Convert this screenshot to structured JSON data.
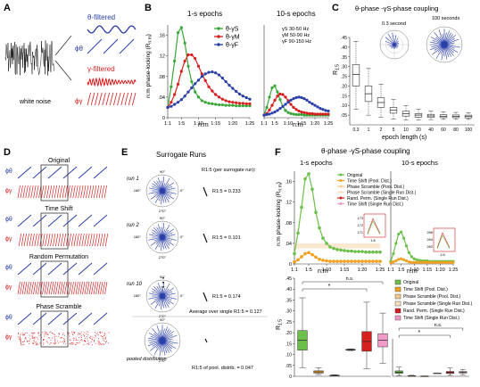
{
  "panels": {
    "A": {
      "label": "A",
      "noise_label": "white noise",
      "theta_filtered": "θ-filtered",
      "gamma_filtered": "γ-filtered",
      "phi_theta": "ϕθ",
      "phi_gamma": "ϕγ"
    },
    "B": {
      "label": "B",
      "title_left": "1-s epochs",
      "title_right": "10-s epochs",
      "ylabel": "n:m phase-locking (R",
      "ylabel_sub": "n:m",
      "ylabel_end": ")",
      "xlabel": "n:m",
      "legend": [
        "θ-γS",
        "θ-γM",
        "θ-γF"
      ],
      "bands": [
        "γS  30-50 Hz",
        "γM  50-90 Hz",
        "γF  90-150 Hz"
      ],
      "yticks": [
        "0",
        ".04",
        ".08",
        ".12",
        ".16"
      ],
      "xticks": [
        "1:1",
        "1:5",
        "1:10",
        "1:15",
        "1:20",
        "1:25"
      ],
      "colors": {
        "slow": "#3aa63a",
        "mid": "#d62020",
        "fast": "#2b3fa8"
      }
    },
    "C": {
      "label": "C",
      "title": "θ-phase -γS-phase coupling",
      "polar_left": "0.3 second",
      "polar_right": "100 seconds",
      "ylabel": "R",
      "ylabel_sub": "1:5",
      "xlabel": "epoch length (s)",
      "yticks": [
        ".05",
        ".10",
        ".15",
        ".20",
        ".25",
        ".30",
        ".35",
        ".40",
        ".45"
      ],
      "xticks": [
        "0.3",
        "1",
        "2",
        "5",
        "10",
        "20",
        "40",
        "60",
        "80",
        "100"
      ]
    },
    "D": {
      "label": "D",
      "sections": [
        "Original",
        "Time Shift",
        "Random Permutation",
        "Phase Scramble"
      ],
      "phi_theta": "ϕθ",
      "phi_gamma": "ϕγ"
    },
    "E": {
      "label": "E",
      "title": "Surrogate Runs",
      "rlabel": "R1:5 (per surrogate run):",
      "runs": [
        {
          "name": "run 1",
          "value": "R1:5 = 0.233"
        },
        {
          "name": "run 2",
          "value": "R1:5 = 0.101"
        },
        {
          "name": "run 10",
          "value": "R1:5 = 0.174"
        }
      ],
      "ellipsis": "⋮",
      "average": "Average over single R1:5 = 0.127",
      "pooled_label": "pooled distribution",
      "pooled_value": "R1:5 of pool. distrib. = 0.047",
      "angles": [
        "90°",
        "270°",
        "0°",
        "180°"
      ]
    },
    "F": {
      "label": "F",
      "title": "θ-phase -γS-phase coupling",
      "title_left": "1-s epochs",
      "title_right": "10-s epochs",
      "ylabel": "n:m phase-locking (R",
      "ylabel_sub": "n:m",
      "ylabel_end": ")",
      "xlabel": "n:m",
      "yticks": [
        "0",
        ".04",
        ".08",
        ".12",
        ".16"
      ],
      "xticks": [
        "1:1",
        "1:5",
        "1:10",
        "1:15",
        "1:20",
        "1:25"
      ],
      "legend": [
        {
          "label": "Original",
          "color": "#6cbf4a"
        },
        {
          "label": "Time Shift (Pool. Dist.)",
          "color": "#f0a020"
        },
        {
          "label": "Phase Scramble (Pool. Dist.)",
          "color": "#f2c890"
        },
        {
          "label": "Phase Scramble (Single Run Dist.)",
          "color": "#f7e0c0"
        },
        {
          "label": "Rand. Perm. (Single Run Dist.)",
          "color": "#d62020"
        },
        {
          "label": "Time Shift (Single Run Dist.)",
          "color": "#f29ac8"
        }
      ],
      "box_legend": [
        {
          "label": "Original",
          "color": "#6cbf4a"
        },
        {
          "label": "Time Shift (Pool. Dist.)",
          "color": "#f0a020"
        },
        {
          "label": "Phase Scramble (Pool. Dist.)",
          "color": "#f2c890"
        },
        {
          "label": "Phase Scramble (Single Run Dist.)",
          "color": "#f7e0c0"
        },
        {
          "label": "Rand. Perm. (Single Run Dist.)",
          "color": "#d62020"
        },
        {
          "label": "Time Shift (Single Run Dist.)",
          "color": "#f29ac8"
        }
      ],
      "box_yticks": [
        "0",
        ".05",
        ".10",
        ".15",
        ".20",
        ".25",
        ".30",
        ".35",
        ".40",
        ".45"
      ],
      "box_ylabel": "R",
      "box_ylabel_sub": "1:5",
      "ns": "n.s.",
      "star": "*",
      "inset_ticks": [
        ".173",
        ".172",
        ".171"
      ],
      "inset_ticks2": [
        ".096",
        ".094",
        ".092"
      ],
      "inset_x": "1:5"
    }
  },
  "chart_data": [
    {
      "id": "B-1s",
      "type": "line",
      "x": [
        1,
        2,
        3,
        4,
        5,
        6,
        7,
        8,
        9,
        10,
        11,
        12,
        13,
        14,
        15,
        16,
        17,
        18,
        19,
        20,
        21,
        22,
        23,
        24,
        25
      ],
      "xticklabels": [
        "1:1",
        "1:5",
        "1:10",
        "1:15",
        "1:20",
        "1:25"
      ],
      "ylim": [
        0,
        0.18
      ],
      "series": [
        {
          "name": "θ-γS",
          "color": "#3aa63a",
          "values": [
            0.02,
            0.06,
            0.11,
            0.165,
            0.175,
            0.145,
            0.1,
            0.07,
            0.05,
            0.04,
            0.033,
            0.03,
            0.028,
            0.027,
            0.026,
            0.025,
            0.025,
            0.024,
            0.024,
            0.024,
            0.023,
            0.023,
            0.023,
            0.023,
            0.023
          ]
        },
        {
          "name": "θ-γM",
          "color": "#d62020",
          "values": [
            0.02,
            0.03,
            0.045,
            0.065,
            0.09,
            0.11,
            0.122,
            0.122,
            0.115,
            0.1,
            0.085,
            0.072,
            0.06,
            0.052,
            0.045,
            0.04,
            0.036,
            0.033,
            0.031,
            0.03,
            0.029,
            0.028,
            0.028,
            0.027,
            0.027
          ]
        },
        {
          "name": "θ-γF",
          "color": "#2b3fa8",
          "values": [
            0.02,
            0.022,
            0.026,
            0.03,
            0.035,
            0.042,
            0.05,
            0.058,
            0.066,
            0.073,
            0.08,
            0.085,
            0.088,
            0.089,
            0.087,
            0.083,
            0.077,
            0.07,
            0.063,
            0.057,
            0.051,
            0.046,
            0.042,
            0.039,
            0.036
          ]
        }
      ]
    },
    {
      "id": "B-10s",
      "type": "line",
      "x": [
        1,
        2,
        3,
        4,
        5,
        6,
        7,
        8,
        9,
        10,
        11,
        12,
        13,
        14,
        15,
        16,
        17,
        18,
        19,
        20,
        21,
        22,
        23,
        24,
        25
      ],
      "xticklabels": [
        "1:1",
        "1:5",
        "1:10",
        "1:15",
        "1:20",
        "1:25"
      ],
      "ylim": [
        0,
        0.18
      ],
      "series": [
        {
          "name": "θ-γS",
          "color": "#3aa63a",
          "values": [
            0.005,
            0.02,
            0.04,
            0.058,
            0.062,
            0.05,
            0.035,
            0.022,
            0.014,
            0.01,
            0.008,
            0.007,
            0.006,
            0.006,
            0.006,
            0.005,
            0.005,
            0.005,
            0.005,
            0.005,
            0.005,
            0.005,
            0.005,
            0.005,
            0.005
          ]
        },
        {
          "name": "θ-γM",
          "color": "#d62020",
          "values": [
            0.005,
            0.008,
            0.015,
            0.024,
            0.034,
            0.042,
            0.046,
            0.045,
            0.04,
            0.033,
            0.026,
            0.02,
            0.016,
            0.013,
            0.011,
            0.01,
            0.009,
            0.008,
            0.008,
            0.007,
            0.007,
            0.007,
            0.007,
            0.007,
            0.007
          ]
        },
        {
          "name": "θ-γF",
          "color": "#2b3fa8",
          "values": [
            0.005,
            0.006,
            0.007,
            0.009,
            0.011,
            0.014,
            0.018,
            0.022,
            0.026,
            0.03,
            0.034,
            0.037,
            0.039,
            0.04,
            0.039,
            0.037,
            0.034,
            0.03,
            0.027,
            0.024,
            0.021,
            0.018,
            0.016,
            0.014,
            0.013
          ]
        }
      ]
    },
    {
      "id": "C-box",
      "type": "box",
      "categories": [
        "0.3",
        "1",
        "2",
        "5",
        "10",
        "20",
        "40",
        "60",
        "80",
        "100"
      ],
      "ylim": [
        0,
        0.45
      ],
      "boxes": [
        {
          "q1": 0.2,
          "median": 0.26,
          "q3": 0.31,
          "min": 0.08,
          "max": 0.43
        },
        {
          "q1": 0.12,
          "median": 0.16,
          "q3": 0.2,
          "min": 0.05,
          "max": 0.29
        },
        {
          "q1": 0.09,
          "median": 0.115,
          "q3": 0.14,
          "min": 0.04,
          "max": 0.21
        },
        {
          "q1": 0.06,
          "median": 0.075,
          "q3": 0.09,
          "min": 0.03,
          "max": 0.13
        },
        {
          "q1": 0.045,
          "median": 0.058,
          "q3": 0.07,
          "min": 0.025,
          "max": 0.1
        },
        {
          "q1": 0.04,
          "median": 0.05,
          "q3": 0.058,
          "min": 0.025,
          "max": 0.08
        },
        {
          "q1": 0.038,
          "median": 0.046,
          "q3": 0.054,
          "min": 0.027,
          "max": 0.07
        },
        {
          "q1": 0.037,
          "median": 0.044,
          "q3": 0.052,
          "min": 0.028,
          "max": 0.066
        },
        {
          "q1": 0.037,
          "median": 0.044,
          "q3": 0.051,
          "min": 0.028,
          "max": 0.064
        },
        {
          "q1": 0.036,
          "median": 0.043,
          "q3": 0.05,
          "min": 0.028,
          "max": 0.062
        }
      ]
    },
    {
      "id": "F-1s",
      "type": "line",
      "x": [
        1,
        2,
        3,
        4,
        5,
        6,
        7,
        8,
        9,
        10,
        11,
        12,
        13,
        14,
        15,
        16,
        17,
        18,
        19,
        20,
        21,
        22,
        23,
        24,
        25
      ],
      "ylim": [
        0,
        0.18
      ],
      "series": [
        {
          "name": "Original",
          "color": "#6cbf4a",
          "values": [
            0.02,
            0.06,
            0.11,
            0.165,
            0.175,
            0.145,
            0.1,
            0.07,
            0.05,
            0.04,
            0.033,
            0.03,
            0.028,
            0.027,
            0.026,
            0.025,
            0.025,
            0.024,
            0.024,
            0.024,
            0.023,
            0.023,
            0.023,
            0.023,
            0.023
          ]
        },
        {
          "name": "Time Shift (Pool. Dist.)",
          "color": "#f0a020",
          "values": [
            0.004,
            0.008,
            0.014,
            0.02,
            0.022,
            0.018,
            0.013,
            0.009,
            0.007,
            0.006,
            0.005,
            0.005,
            0.005,
            0.005,
            0.005,
            0.005,
            0.005,
            0.005,
            0.005,
            0.005,
            0.005,
            0.005,
            0.005,
            0.005,
            0.005
          ]
        },
        {
          "name": "Phase Scramble (Pool. Dist.)",
          "color": "#f2c890",
          "values": [
            0.035,
            0.035,
            0.035,
            0.035,
            0.035,
            0.035,
            0.035,
            0.035,
            0.035,
            0.035,
            0.035,
            0.035,
            0.035,
            0.035,
            0.035,
            0.035,
            0.035,
            0.035,
            0.035,
            0.035,
            0.035,
            0.035,
            0.035,
            0.035,
            0.035
          ]
        }
      ]
    },
    {
      "id": "F-10s",
      "type": "line",
      "x": [
        1,
        2,
        3,
        4,
        5,
        6,
        7,
        8,
        9,
        10,
        11,
        12,
        13,
        14,
        15,
        16,
        17,
        18,
        19,
        20,
        21,
        22,
        23,
        24,
        25
      ],
      "ylim": [
        0,
        0.18
      ],
      "series": [
        {
          "name": "Original",
          "color": "#6cbf4a",
          "values": [
            0.005,
            0.02,
            0.04,
            0.058,
            0.062,
            0.05,
            0.035,
            0.022,
            0.014,
            0.01,
            0.008,
            0.007,
            0.006,
            0.006,
            0.006,
            0.005,
            0.005,
            0.005,
            0.005,
            0.005,
            0.005,
            0.005,
            0.005,
            0.005,
            0.005
          ]
        },
        {
          "name": "Time Shift (Pool. Dist.)",
          "color": "#f0a020",
          "values": [
            0.002,
            0.004,
            0.006,
            0.009,
            0.01,
            0.008,
            0.006,
            0.004,
            0.003,
            0.003,
            0.003,
            0.003,
            0.003,
            0.003,
            0.003,
            0.003,
            0.003,
            0.003,
            0.003,
            0.003,
            0.003,
            0.003,
            0.003,
            0.003,
            0.003
          ]
        }
      ]
    },
    {
      "id": "F-box-1s",
      "type": "box",
      "categories": [
        "Original",
        "Time Shift (Pool. Dist.)",
        "Phase Scramble (Pool. Dist.)",
        "Phase Scramble (Single Run Dist.)",
        "Rand. Perm. (Single Run Dist.)",
        "Time Shift (Single Run Dist.)"
      ],
      "ylim": [
        0,
        0.45
      ],
      "boxes": [
        {
          "q1": 0.12,
          "median": 0.165,
          "q3": 0.21,
          "min": 0.04,
          "max": 0.36,
          "color": "#6cbf4a"
        },
        {
          "q1": 0.015,
          "median": 0.02,
          "q3": 0.025,
          "min": 0.008,
          "max": 0.04,
          "color": "#f0a020"
        },
        {
          "q1": 0.003,
          "median": 0.004,
          "q3": 0.005,
          "min": 0.002,
          "max": 0.007,
          "color": "#f2c890"
        },
        {
          "q1": 0.12,
          "median": 0.122,
          "q3": 0.124,
          "min": 0.118,
          "max": 0.126,
          "color": "#f7e0c0"
        },
        {
          "q1": 0.115,
          "median": 0.16,
          "q3": 0.205,
          "min": 0.035,
          "max": 0.34,
          "color": "#d62020"
        },
        {
          "q1": 0.135,
          "median": 0.165,
          "q3": 0.195,
          "min": 0.06,
          "max": 0.29,
          "color": "#f29ac8"
        }
      ]
    },
    {
      "id": "F-box-10s",
      "type": "box",
      "categories": [
        "Original",
        "Time Shift (Pool. Dist.)",
        "Phase Scramble (Pool. Dist.)",
        "Phase Scramble (Single Run Dist.)",
        "Rand. Perm. (Single Run Dist.)",
        "Time Shift (Single Run Dist.)"
      ],
      "ylim": [
        0,
        0.45
      ],
      "boxes": [
        {
          "q1": 0.035,
          "median": 0.05,
          "q3": 0.065,
          "min": 0.01,
          "max": 0.11,
          "color": "#6cbf4a"
        },
        {
          "q1": 0.005,
          "median": 0.006,
          "q3": 0.008,
          "min": 0.003,
          "max": 0.012,
          "color": "#f0a020"
        },
        {
          "q1": 0.002,
          "median": 0.002,
          "q3": 0.003,
          "min": 0.001,
          "max": 0.004,
          "color": "#f2c890"
        },
        {
          "q1": 0.038,
          "median": 0.039,
          "q3": 0.04,
          "min": 0.037,
          "max": 0.041,
          "color": "#f7e0c0"
        },
        {
          "q1": 0.035,
          "median": 0.045,
          "q3": 0.058,
          "min": 0.012,
          "max": 0.1,
          "color": "#d62020"
        },
        {
          "q1": 0.04,
          "median": 0.048,
          "q3": 0.056,
          "min": 0.02,
          "max": 0.08,
          "color": "#f29ac8"
        }
      ]
    }
  ]
}
